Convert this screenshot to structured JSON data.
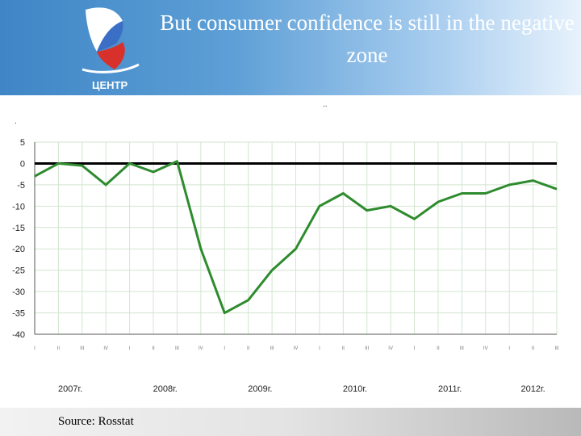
{
  "slide": {
    "title": "But consumer confidence is still in the negative zone",
    "source": "Source: Rosstat",
    "logo_text": "ЦЕНТР",
    "stray_marks": [
      ".",
      ".."
    ]
  },
  "colors": {
    "header_blue": "#3f86c6",
    "series_line": "#2e8b2e",
    "zero_line": "#000000",
    "grid": "#d2e6cf"
  },
  "chart_data": {
    "type": "line",
    "title": "",
    "xlabel": "",
    "ylabel": "",
    "ylim": [
      -40,
      5
    ],
    "yticks": [
      5,
      0,
      -5,
      -10,
      -15,
      -20,
      -25,
      -30,
      -35,
      -40
    ],
    "grid": true,
    "x_quarters": [
      "I",
      "II",
      "III",
      "IV",
      "I",
      "II",
      "III",
      "IV",
      "I",
      "II",
      "III",
      "IV",
      "I",
      "II",
      "III",
      "IV",
      "I",
      "II",
      "III",
      "IV",
      "I",
      "II",
      "III"
    ],
    "x_years": [
      "2007г.",
      "2008г.",
      "2009г.",
      "2010г.",
      "2011г.",
      "2012г."
    ],
    "series": [
      {
        "values": [
          -3,
          0,
          -0.5,
          -5,
          0,
          -2,
          0.5,
          -20,
          -35,
          -32,
          -25,
          -20,
          -10,
          -7,
          -11,
          -10,
          -13,
          -9,
          -7,
          -7,
          -5,
          -4,
          -6
        ]
      }
    ],
    "reference_line": 0
  }
}
